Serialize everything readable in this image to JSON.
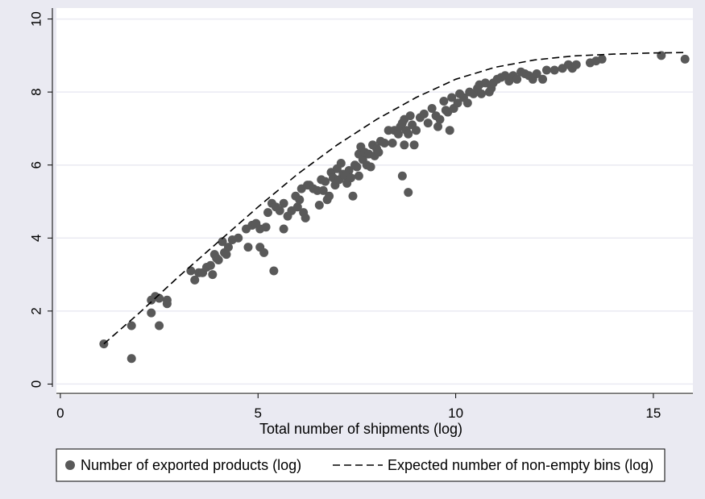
{
  "chart_data": {
    "type": "scatter",
    "title": "",
    "xlabel": "Total number of shipments (log)",
    "ylabel": "",
    "xlim": [
      -0.1,
      16
    ],
    "ylim": [
      -0.3,
      10.3
    ],
    "xticks": [
      0,
      5,
      10,
      15
    ],
    "yticks": [
      0,
      2,
      4,
      6,
      8,
      10
    ],
    "grid": "horizontal",
    "legend": "bottom",
    "colors": {
      "outer_background": "#eaeaf2",
      "plot_background": "#ffffff",
      "gridline": "#eaeaf2",
      "points": "#595959",
      "line": "#000000"
    },
    "series": [
      {
        "name": "Number of exported products (log)",
        "kind": "scatter",
        "points": [
          [
            1.1,
            1.1
          ],
          [
            1.8,
            1.6
          ],
          [
            1.8,
            0.7
          ],
          [
            2.3,
            1.95
          ],
          [
            2.3,
            2.3
          ],
          [
            2.4,
            2.4
          ],
          [
            2.5,
            2.35
          ],
          [
            2.5,
            1.6
          ],
          [
            2.7,
            2.3
          ],
          [
            2.7,
            2.2
          ],
          [
            3.3,
            3.1
          ],
          [
            3.4,
            2.85
          ],
          [
            3.5,
            3.05
          ],
          [
            3.6,
            3.05
          ],
          [
            3.7,
            3.2
          ],
          [
            3.8,
            3.25
          ],
          [
            3.85,
            3.0
          ],
          [
            3.9,
            3.55
          ],
          [
            3.95,
            3.45
          ],
          [
            4.0,
            3.4
          ],
          [
            4.1,
            3.9
          ],
          [
            4.15,
            3.6
          ],
          [
            4.2,
            3.55
          ],
          [
            4.25,
            3.75
          ],
          [
            4.35,
            3.95
          ],
          [
            4.5,
            4.0
          ],
          [
            4.7,
            4.25
          ],
          [
            4.75,
            3.75
          ],
          [
            4.85,
            4.35
          ],
          [
            4.95,
            4.4
          ],
          [
            5.05,
            4.25
          ],
          [
            5.05,
            3.75
          ],
          [
            5.15,
            3.6
          ],
          [
            5.2,
            4.3
          ],
          [
            5.25,
            4.7
          ],
          [
            5.35,
            4.95
          ],
          [
            5.4,
            3.1
          ],
          [
            5.45,
            4.85
          ],
          [
            5.55,
            4.75
          ],
          [
            5.65,
            4.95
          ],
          [
            5.65,
            4.25
          ],
          [
            5.75,
            4.6
          ],
          [
            5.85,
            4.75
          ],
          [
            5.95,
            5.15
          ],
          [
            6.0,
            4.85
          ],
          [
            6.05,
            5.05
          ],
          [
            6.1,
            5.35
          ],
          [
            6.15,
            4.7
          ],
          [
            6.2,
            4.55
          ],
          [
            6.25,
            5.45
          ],
          [
            6.3,
            5.45
          ],
          [
            6.4,
            5.35
          ],
          [
            6.5,
            5.3
          ],
          [
            6.55,
            4.9
          ],
          [
            6.6,
            5.6
          ],
          [
            6.65,
            5.3
          ],
          [
            6.7,
            5.55
          ],
          [
            6.75,
            5.05
          ],
          [
            6.8,
            5.15
          ],
          [
            6.85,
            5.8
          ],
          [
            6.9,
            5.65
          ],
          [
            6.95,
            5.45
          ],
          [
            7.0,
            5.9
          ],
          [
            7.05,
            5.6
          ],
          [
            7.1,
            6.05
          ],
          [
            7.15,
            5.75
          ],
          [
            7.2,
            5.7
          ],
          [
            7.25,
            5.5
          ],
          [
            7.3,
            5.85
          ],
          [
            7.35,
            5.65
          ],
          [
            7.4,
            5.15
          ],
          [
            7.45,
            6.0
          ],
          [
            7.5,
            5.95
          ],
          [
            7.55,
            6.3
          ],
          [
            7.55,
            5.7
          ],
          [
            7.6,
            6.5
          ],
          [
            7.65,
            6.15
          ],
          [
            7.7,
            6.35
          ],
          [
            7.75,
            6.0
          ],
          [
            7.8,
            6.3
          ],
          [
            7.85,
            5.95
          ],
          [
            7.9,
            6.55
          ],
          [
            7.95,
            6.25
          ],
          [
            8.0,
            6.45
          ],
          [
            8.05,
            6.35
          ],
          [
            8.1,
            6.65
          ],
          [
            8.2,
            6.6
          ],
          [
            8.3,
            6.95
          ],
          [
            8.4,
            6.6
          ],
          [
            8.45,
            6.95
          ],
          [
            8.55,
            6.85
          ],
          [
            8.6,
            7.05
          ],
          [
            8.65,
            7.15
          ],
          [
            8.7,
            7.25
          ],
          [
            8.75,
            6.95
          ],
          [
            8.8,
            6.85
          ],
          [
            8.85,
            7.35
          ],
          [
            8.9,
            7.1
          ],
          [
            8.95,
            6.55
          ],
          [
            8.7,
            6.55
          ],
          [
            8.65,
            5.7
          ],
          [
            8.8,
            5.25
          ],
          [
            9.0,
            6.95
          ],
          [
            9.1,
            7.3
          ],
          [
            9.2,
            7.4
          ],
          [
            9.3,
            7.15
          ],
          [
            9.4,
            7.55
          ],
          [
            9.5,
            7.35
          ],
          [
            9.55,
            7.05
          ],
          [
            9.6,
            7.25
          ],
          [
            9.7,
            7.75
          ],
          [
            9.75,
            7.5
          ],
          [
            9.8,
            7.45
          ],
          [
            9.85,
            6.95
          ],
          [
            9.9,
            7.85
          ],
          [
            9.95,
            7.55
          ],
          [
            10.05,
            7.7
          ],
          [
            10.1,
            7.95
          ],
          [
            10.2,
            7.85
          ],
          [
            10.3,
            7.7
          ],
          [
            10.35,
            8.0
          ],
          [
            10.45,
            7.95
          ],
          [
            10.55,
            8.1
          ],
          [
            10.6,
            8.2
          ],
          [
            10.65,
            7.95
          ],
          [
            10.75,
            8.25
          ],
          [
            10.85,
            8.0
          ],
          [
            10.9,
            8.1
          ],
          [
            10.95,
            8.25
          ],
          [
            11.05,
            8.35
          ],
          [
            11.15,
            8.4
          ],
          [
            11.25,
            8.45
          ],
          [
            11.35,
            8.3
          ],
          [
            11.45,
            8.45
          ],
          [
            11.55,
            8.35
          ],
          [
            11.65,
            8.55
          ],
          [
            11.75,
            8.5
          ],
          [
            11.85,
            8.45
          ],
          [
            11.95,
            8.35
          ],
          [
            12.05,
            8.5
          ],
          [
            12.2,
            8.35
          ],
          [
            12.3,
            8.6
          ],
          [
            12.5,
            8.6
          ],
          [
            12.7,
            8.65
          ],
          [
            12.85,
            8.75
          ],
          [
            12.95,
            8.65
          ],
          [
            13.05,
            8.75
          ],
          [
            13.4,
            8.8
          ],
          [
            13.55,
            8.85
          ],
          [
            13.7,
            8.9
          ],
          [
            15.2,
            9.0
          ],
          [
            15.8,
            8.9
          ]
        ]
      },
      {
        "name": "Expected number of non-empty bins (log)",
        "kind": "line",
        "style": "dashed",
        "points": [
          [
            1.1,
            1.1
          ],
          [
            2,
            1.95
          ],
          [
            3,
            2.95
          ],
          [
            4,
            3.9
          ],
          [
            5,
            4.85
          ],
          [
            6,
            5.75
          ],
          [
            7,
            6.55
          ],
          [
            8,
            7.25
          ],
          [
            9,
            7.85
          ],
          [
            10,
            8.35
          ],
          [
            11,
            8.68
          ],
          [
            12,
            8.88
          ],
          [
            13,
            8.99
          ],
          [
            14,
            9.04
          ],
          [
            15,
            9.07
          ],
          [
            15.8,
            9.08
          ]
        ]
      }
    ]
  }
}
